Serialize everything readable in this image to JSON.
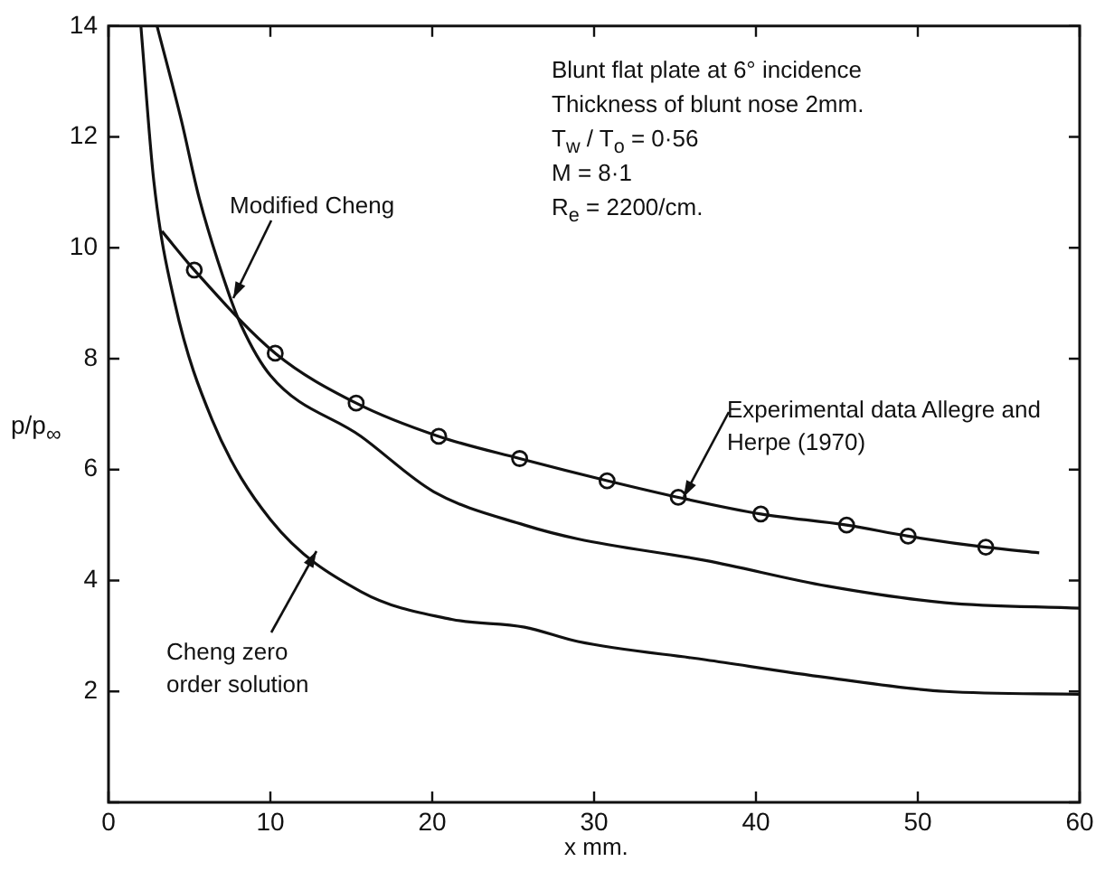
{
  "chart_data": {
    "type": "line",
    "xlabel": "x mm.",
    "ylabel": "p/p$_{∞}$",
    "xlim": [
      0,
      60
    ],
    "xticks": [
      0,
      10,
      20,
      30,
      40,
      50,
      60
    ],
    "ylim": [
      0,
      14
    ],
    "yticks": [
      {
        "value": 0,
        "label": null
      },
      2,
      4,
      6,
      8,
      10,
      12,
      14
    ],
    "grid": false,
    "legend": false,
    "marker": "none",
    "line_style": "solid",
    "annotations": [
      "Blunt flat plate at 6° incidence",
      "Thickness of blunt nose 2mm.",
      "T$_{w}$ / T$_{o}$ = 0·56",
      "M = 8·1",
      "R$_{e}$ = 2200/cm."
    ],
    "series": [
      {
        "name": "Modified Cheng",
        "color": "#111111",
        "x": [
          3.0,
          4.5,
          5.6,
          7.4,
          8.2,
          10,
          15.6,
          20.1,
          25.7,
          29,
          36.9,
          44.4,
          51.7,
          60
        ],
        "values": [
          14,
          12.3,
          10.9,
          9.2,
          8.6,
          7.7,
          6.6,
          5.6,
          5.0,
          4.75,
          4.36,
          3.9,
          3.6,
          3.5
        ]
      },
      {
        "name": "Cheng zero order solution",
        "color": "#111111",
        "x": [
          2.0,
          2.8,
          4.1,
          6.4,
          10,
          15.6,
          21.2,
          25.7,
          29,
          36.9,
          44.4,
          51.7,
          60
        ],
        "values": [
          14,
          11.2,
          9.0,
          6.9,
          5.1,
          3.8,
          3.3,
          3.16,
          2.9,
          2.57,
          2.25,
          2.0,
          1.95
        ]
      },
      {
        "color": "#111111",
        "x": [
          3.3,
          5.3,
          10.3,
          15.3,
          20.4,
          25.4,
          30.8,
          35.2,
          40.3,
          45.6,
          49.4,
          54.2,
          57.5
        ],
        "values": [
          10.3,
          9.6,
          8.1,
          7.2,
          6.6,
          6.2,
          5.8,
          5.5,
          5.2,
          5.0,
          4.8,
          4.6,
          4.5
        ]
      },
      {
        "name": "Experimental data Allegre and Herpe (1970)",
        "type": "scatter",
        "marker": "circle",
        "color": "#111111",
        "x": [
          5.3,
          10.3,
          15.3,
          20.4,
          25.4,
          30.8,
          35.2,
          40.3,
          45.6,
          49.4,
          54.2
        ],
        "values": [
          9.6,
          8.1,
          7.2,
          6.6,
          6.2,
          5.8,
          5.5,
          5.2,
          5.0,
          4.8,
          4.6
        ]
      }
    ]
  }
}
